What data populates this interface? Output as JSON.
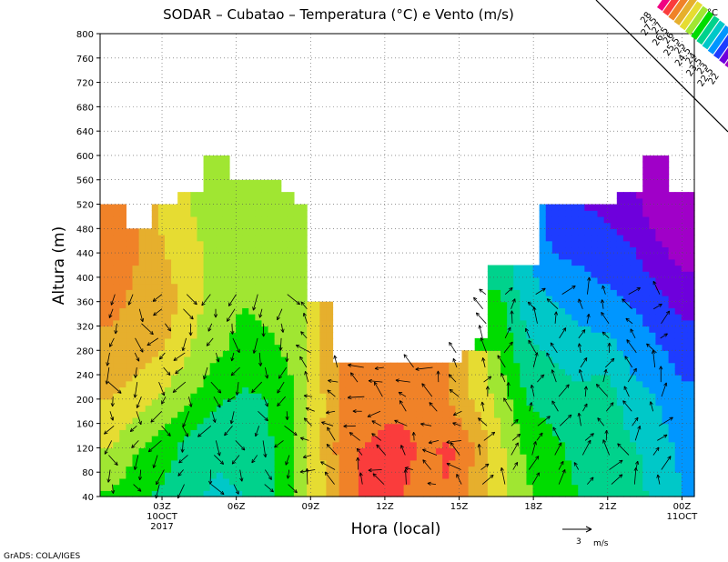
{
  "chart_data": {
    "type": "heatmap",
    "title": "SODAR – Cubatao – Temperatura (°C) e Vento (m/s)",
    "xlabel": "Hora (local)",
    "ylabel": "Altura (m)",
    "ylim": [
      40,
      800
    ],
    "yticks": [
      40,
      80,
      120,
      160,
      200,
      240,
      280,
      320,
      360,
      400,
      440,
      480,
      520,
      560,
      600,
      640,
      680,
      720,
      760,
      800
    ],
    "xlim": [
      0,
      23
    ],
    "xticks": [
      {
        "hour": 2,
        "label": "03Z",
        "sub1": "10OCT",
        "sub2": "2017"
      },
      {
        "hour": 5,
        "label": "06Z"
      },
      {
        "hour": 8,
        "label": "09Z"
      },
      {
        "hour": 11,
        "label": "12Z"
      },
      {
        "hour": 14,
        "label": "15Z"
      },
      {
        "hour": 17,
        "label": "18Z"
      },
      {
        "hour": 20,
        "label": "21Z"
      },
      {
        "hour": 23,
        "label": "00Z",
        "sub1": "11OCT"
      }
    ],
    "grid": true,
    "colorbar": {
      "unit": "°C",
      "placement": "top-right",
      "levels": [
        22,
        22.5,
        23,
        23.5,
        24,
        24.5,
        25,
        25.5,
        26,
        26.5,
        27,
        27.5,
        28
      ],
      "colors": [
        "#a000c8",
        "#6e00dc",
        "#1e3cff",
        "#0096ff",
        "#00c8c8",
        "#00d28c",
        "#00dc00",
        "#a0e632",
        "#e6dc32",
        "#e6af2d",
        "#f08228",
        "#fa3c3c",
        "#f00082"
      ]
    },
    "data_top_m": [
      520,
      480,
      520,
      540,
      600,
      560,
      560,
      540,
      360,
      260,
      260,
      260,
      260,
      260,
      300,
      420,
      420,
      520,
      520,
      520,
      540,
      600,
      540
    ],
    "temperature_rows": {
      "heights_m": [
        40,
        120,
        200,
        280,
        360,
        440,
        520,
        600
      ],
      "by_hour": [
        [
          25.4,
          26.0,
          26.5,
          26.9,
          27.1,
          27.2,
          27.0,
          null
        ],
        [
          25.1,
          25.5,
          26.2,
          26.7,
          26.9,
          27.0,
          null,
          null
        ],
        [
          24.9,
          25.2,
          25.9,
          26.5,
          26.8,
          26.5,
          26.3,
          null
        ],
        [
          24.6,
          24.8,
          25.5,
          26.0,
          26.2,
          26.1,
          26.0,
          null
        ],
        [
          24.4,
          24.6,
          25.1,
          25.6,
          25.8,
          25.9,
          25.8,
          25.7
        ],
        [
          24.5,
          24.6,
          24.9,
          25.3,
          25.5,
          25.6,
          25.7,
          null
        ],
        [
          24.8,
          24.9,
          25.0,
          25.4,
          25.6,
          25.9,
          25.8,
          null
        ],
        [
          25.5,
          25.5,
          25.5,
          25.6,
          25.7,
          25.8,
          null,
          null
        ],
        [
          26.3,
          26.4,
          26.4,
          26.5,
          null,
          null,
          null,
          null
        ],
        [
          27.2,
          27.4,
          27.1,
          null,
          null,
          null,
          null,
          null
        ],
        [
          27.8,
          27.6,
          27.1,
          null,
          null,
          null,
          null,
          null
        ],
        [
          27.6,
          27.8,
          27.3,
          null,
          null,
          null,
          null,
          null
        ],
        [
          27.2,
          27.4,
          27.1,
          null,
          null,
          null,
          null,
          null
        ],
        [
          27.5,
          27.6,
          27.0,
          null,
          null,
          null,
          null,
          null
        ],
        [
          26.8,
          27.0,
          26.4,
          null,
          null,
          null,
          null,
          null
        ],
        [
          26.2,
          26.1,
          25.8,
          25.4,
          25.1,
          24.7,
          null,
          null
        ],
        [
          25.6,
          25.4,
          25.0,
          24.6,
          24.3,
          24.0,
          null,
          null
        ],
        [
          25.2,
          25.1,
          24.8,
          24.4,
          24.0,
          23.5,
          23.2,
          null
        ],
        [
          25.0,
          24.9,
          24.6,
          24.2,
          23.8,
          23.4,
          23.0,
          null
        ],
        [
          24.8,
          24.9,
          24.9,
          24.2,
          23.7,
          23.2,
          22.9,
          null
        ],
        [
          24.7,
          24.6,
          24.2,
          23.9,
          23.5,
          23.1,
          22.7,
          null
        ],
        [
          24.4,
          24.3,
          24.0,
          23.6,
          23.2,
          22.7,
          22.2,
          21.9
        ],
        [
          24.0,
          23.9,
          23.6,
          23.3,
          22.8,
          22.3,
          21.8,
          null
        ]
      ]
    },
    "wind_reference": {
      "label": "3",
      "unit": "m/s"
    }
  },
  "footer": {
    "credit": "GrADS: COLA/IGES"
  }
}
